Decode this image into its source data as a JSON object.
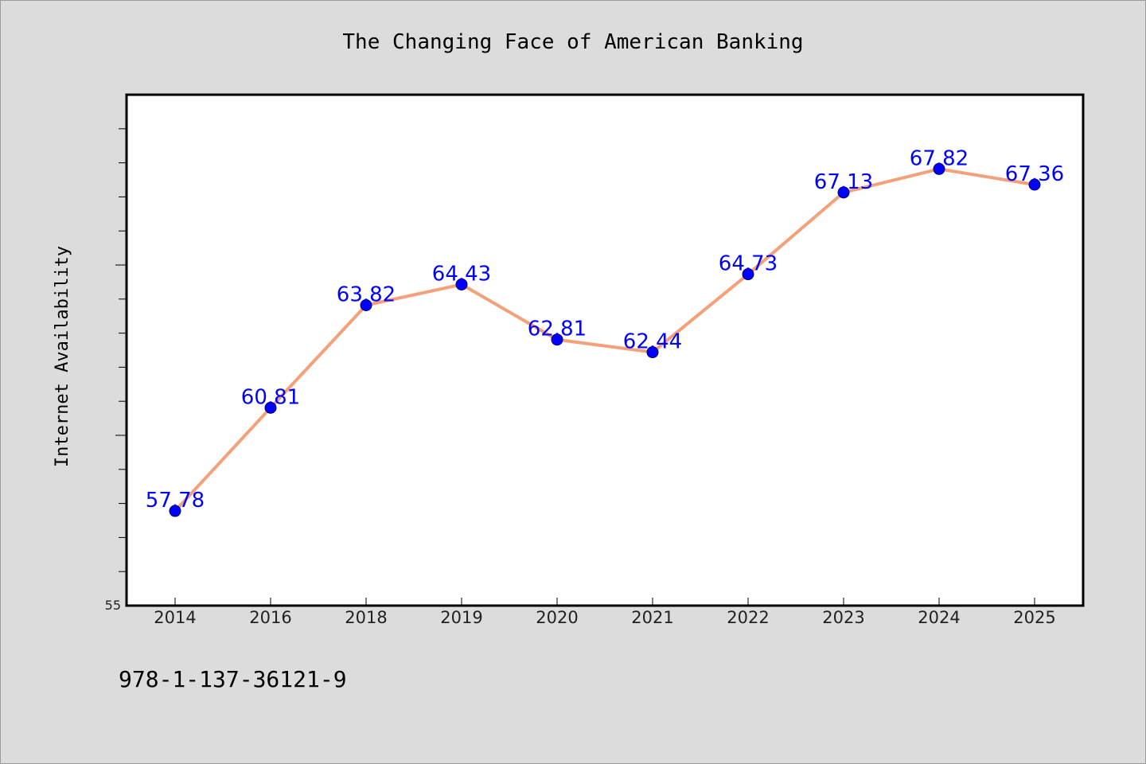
{
  "chart_data": {
    "type": "line",
    "title": "The Changing Face of American Banking",
    "xlabel": "",
    "ylabel": "Internet Availability",
    "categories": [
      "2014",
      "2016",
      "2018",
      "2019",
      "2020",
      "2021",
      "2022",
      "2023",
      "2024",
      "2025"
    ],
    "series": [
      {
        "values": [
          57.78,
          60.81,
          63.82,
          64.43,
          62.81,
          62.44,
          64.73,
          67.13,
          67.82,
          67.36
        ],
        "data_labels": [
          "57.78",
          "60.81",
          "63.82",
          "64.43",
          "62.81",
          "62.44",
          "64.73",
          "67.13",
          "67.82",
          "67.36"
        ]
      }
    ],
    "ylim": [
      55,
      70
    ],
    "y_tick_labels": [
      "55"
    ],
    "grid": false,
    "line_color": "#f4a07a",
    "marker_color": "#0000ff",
    "label_color": "#0000ff"
  },
  "footnote": "978-1-137-36121-9",
  "colors": {
    "background": "#dcdcdc",
    "plot_area": "#ffffff"
  }
}
